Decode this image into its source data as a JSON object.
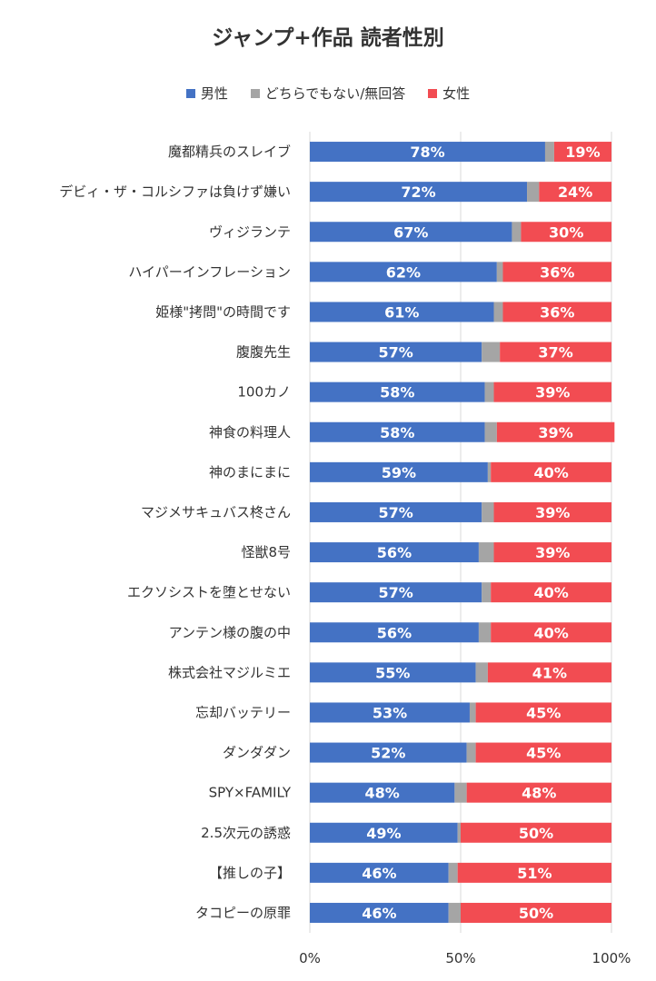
{
  "chart_data": {
    "type": "bar",
    "orientation": "horizontal",
    "stacked": true,
    "title": "ジャンプ+作品 読者性別",
    "categories": [
      "魔都精兵のスレイブ",
      "デビィ・ザ・コルシファは負けず嫌い",
      "ヴィジランテ",
      "ハイパーインフレーション",
      "姫様\"拷問\"の時間です",
      "腹腹先生",
      "100カノ",
      "神食の料理人",
      "神のまにまに",
      "マジメサキュバス柊さん",
      "怪獣8号",
      "エクソシストを堕とせない",
      "アンテン様の腹の中",
      "株式会社マジルミエ",
      "忘却バッテリー",
      "ダンダダン",
      "SPY×FAMILY",
      "2.5次元の誘惑",
      "【推しの子】",
      "タコピーの原罪"
    ],
    "series": [
      {
        "name": "男性",
        "color": "#4472c4",
        "values": [
          78,
          72,
          67,
          62,
          61,
          57,
          58,
          58,
          59,
          57,
          56,
          57,
          56,
          55,
          53,
          52,
          48,
          49,
          46,
          46
        ],
        "labels": [
          "78%",
          "72%",
          "67%",
          "62%",
          "61%",
          "57%",
          "58%",
          "58%",
          "59%",
          "57%",
          "56%",
          "57%",
          "56%",
          "55%",
          "53%",
          "52%",
          "48%",
          "49%",
          "46%",
          "46%"
        ]
      },
      {
        "name": "どちらでもない/無回答",
        "color": "#a5a5a5",
        "values": [
          3,
          4,
          3,
          2,
          3,
          6,
          3,
          4,
          1,
          4,
          5,
          3,
          4,
          4,
          2,
          3,
          4,
          1,
          3,
          4
        ],
        "labels": []
      },
      {
        "name": "女性",
        "color": "#f24c52",
        "values": [
          19,
          24,
          30,
          36,
          36,
          37,
          39,
          39,
          40,
          39,
          39,
          40,
          40,
          41,
          45,
          45,
          48,
          50,
          51,
          50
        ],
        "labels": [
          "19%",
          "24%",
          "30%",
          "36%",
          "36%",
          "37%",
          "39%",
          "39%",
          "40%",
          "39%",
          "39%",
          "40%",
          "40%",
          "41%",
          "45%",
          "45%",
          "48%",
          "50%",
          "51%",
          "50%"
        ]
      }
    ],
    "xlim": [
      0,
      100
    ],
    "xticks": [
      "0%",
      "50%",
      "100%"
    ],
    "grid": true,
    "legend_position": "top"
  }
}
